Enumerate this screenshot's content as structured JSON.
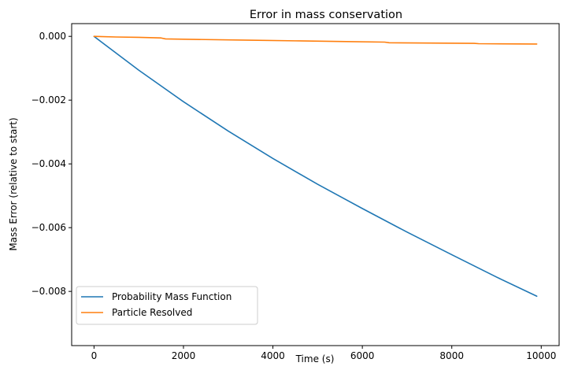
{
  "chart_data": {
    "type": "line",
    "title": "Error in mass conservation",
    "xlabel": "Time (s)",
    "ylabel": "Mass Error (relative to start)",
    "xlim": [
      -500,
      10400
    ],
    "ylim": [
      -0.0097,
      0.0004
    ],
    "xticks": [
      0,
      2000,
      4000,
      6000,
      8000,
      10000
    ],
    "xtick_labels": [
      "0",
      "2000",
      "4000",
      "6000",
      "8000",
      "10000"
    ],
    "yticks": [
      0.0,
      -0.002,
      -0.004,
      -0.006,
      -0.008
    ],
    "ytick_labels": [
      "0.000",
      "−0.002",
      "−0.004",
      "−0.006",
      "−0.008"
    ],
    "grid": false,
    "legend_position": "lower-left",
    "series": [
      {
        "name": "Probability Mass Function",
        "color": "#1f77b4",
        "x": [
          0,
          1000,
          2000,
          3000,
          4000,
          5000,
          6000,
          7000,
          8000,
          9000,
          9900
        ],
        "y": [
          0.0,
          -0.00106,
          -0.00205,
          -0.00297,
          -0.00383,
          -0.00464,
          -0.0054,
          -0.00614,
          -0.00685,
          -0.00755,
          -0.00815
        ]
      },
      {
        "name": "Particle Resolved",
        "color": "#ff7f0e",
        "x": [
          0,
          500,
          1000,
          1500,
          1600,
          2500,
          3500,
          4500,
          5500,
          6500,
          6600,
          7500,
          8500,
          8600,
          9900
        ],
        "y": [
          0.0,
          -2e-05,
          -3e-05,
          -5e-05,
          -8e-05,
          -0.0001,
          -0.00012,
          -0.00014,
          -0.00016,
          -0.00018,
          -0.0002,
          -0.00021,
          -0.00022,
          -0.00023,
          -0.00024
        ]
      }
    ]
  }
}
